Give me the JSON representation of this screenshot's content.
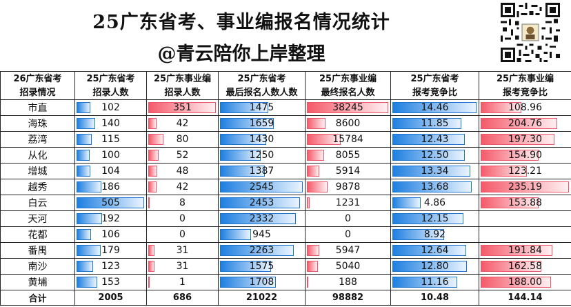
{
  "header": {
    "title": "25广东省考、事业编报名情况统计",
    "subtitle": "@青云陪你上岸整理"
  },
  "qr_code": {
    "icon": "qr-code-icon"
  },
  "table": {
    "headers": [
      [
        "26广东省考",
        "招录情况"
      ],
      [
        "25广东省考",
        "招录人数"
      ],
      [
        "25广东事业编",
        "招录人数"
      ],
      [
        "25广东省考",
        "最后报名人数人数"
      ],
      [
        "25广东事业编",
        "最终报名人数"
      ],
      [
        "25广东省考",
        "报考竞争比"
      ],
      [
        "25广东事业编",
        "报考竞争比"
      ]
    ],
    "rows": [
      [
        "市直",
        "102",
        "351",
        "1475",
        "38245",
        "14.46",
        "108.96"
      ],
      [
        "海珠",
        "140",
        "42",
        "1659",
        "8600",
        "11.85",
        "204.76"
      ],
      [
        "荔湾",
        "115",
        "80",
        "1430",
        "15784",
        "12.43",
        "197.30"
      ],
      [
        "从化",
        "100",
        "52",
        "1250",
        "8055",
        "12.50",
        "154.90"
      ],
      [
        "增城",
        "104",
        "48",
        "1387",
        "5914",
        "13.34",
        "123.21"
      ],
      [
        "越秀",
        "186",
        "42",
        "2545",
        "9878",
        "13.68",
        "235.19"
      ],
      [
        "白云",
        "505",
        "8",
        "2453",
        "1231",
        "4.86",
        "153.88"
      ],
      [
        "天河",
        "192",
        "0",
        "2332",
        "0",
        "12.15",
        ""
      ],
      [
        "花都",
        "106",
        "0",
        "945",
        "0",
        "8.92",
        ""
      ],
      [
        "番禺",
        "179",
        "31",
        "2263",
        "5947",
        "12.64",
        "191.84"
      ],
      [
        "南沙",
        "123",
        "31",
        "1575",
        "5040",
        "12.80",
        "162.58"
      ],
      [
        "黄埔",
        "153",
        "1",
        "1708",
        "188",
        "11.16",
        "188.00"
      ]
    ],
    "total": [
      "合计",
      "2005",
      "686",
      "21022",
      "98882",
      "10.48",
      "144.14"
    ],
    "bar_max": [
      null,
      505,
      351,
      2545,
      38245,
      14.46,
      235.19
    ],
    "bar_colors": [
      null,
      "blue",
      "red",
      "blue",
      "red",
      "blue",
      "red"
    ]
  }
}
